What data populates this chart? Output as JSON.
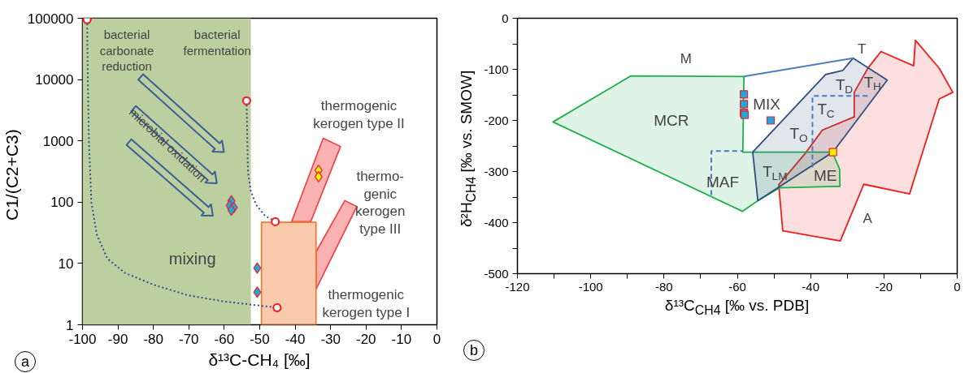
{
  "chart_data": [
    {
      "type": "scatter",
      "xlabel": "δ¹³C-CH₄ [‰]",
      "ylabel": "C1/(C2+C3)",
      "log": "y",
      "grid": false,
      "xlim": [
        -100,
        0
      ],
      "ylim": [
        1,
        100000
      ],
      "xticks": [
        -100,
        -90,
        -80,
        -70,
        -60,
        -50,
        -40,
        -30,
        -20,
        -10,
        0
      ],
      "yticks": [
        1,
        10,
        100,
        1000,
        10000,
        100000
      ],
      "bands": [
        {
          "axis": "x",
          "from": -100,
          "to": -52.5,
          "color": "#bccf9f"
        }
      ],
      "series": [
        {
          "type": "area",
          "color": "#f03c3c",
          "x": [
            -32.1,
            -27.2,
            -35.6,
            -41.0
          ],
          "values": [
            1100,
            810,
            48,
            48
          ]
        },
        {
          "type": "area",
          "color": "#f03c3c",
          "x": [
            -26.0,
            -22.6,
            -34.1,
            -34.1
          ],
          "values": [
            106,
            85,
            3.8,
            15.5
          ]
        },
        {
          "type": "area",
          "color": "#f07830",
          "x": [
            -49.5,
            -34.1,
            -34.1,
            -49.5
          ],
          "values": [
            1,
            1,
            47,
            47
          ]
        },
        {
          "type": "line",
          "color": "#2f4f8f",
          "line_style": "dotted",
          "x": [
            -98.7,
            -98.5,
            -98.2,
            -97.5,
            -96,
            -93,
            -88,
            -80,
            -70,
            -60,
            -45.1
          ],
          "values": [
            95000,
            10000,
            1000,
            100,
            30,
            12,
            7,
            4.5,
            3,
            2.4,
            1.9
          ]
        },
        {
          "type": "line",
          "color": "#2f4f8f",
          "line_style": "dotted",
          "x": [
            -53.7,
            -53.5,
            -53.3,
            -52.5,
            -51,
            -48.5,
            -45.6
          ],
          "values": [
            4500,
            1000,
            300,
            150,
            90,
            60,
            48
          ]
        },
        {
          "marker": "circle",
          "color": "#e8262a",
          "x": [
            -98.7,
            -53.7,
            -45.6,
            -45.1
          ],
          "values": [
            95000,
            4500,
            48,
            1.9
          ]
        },
        {
          "marker": "diamond",
          "color": "#1fa7e0",
          "x": [
            -58,
            -58.5,
            -57.3,
            -58,
            -50.7,
            -50.7
          ],
          "values": [
            105,
            88,
            82,
            74,
            8.4,
            3.4
          ]
        },
        {
          "marker": "diamond",
          "color": "#ffee00",
          "x": [
            -33.4,
            -33.4
          ],
          "values": [
            330,
            260
          ]
        }
      ],
      "annotations": [
        "bacterial\ncarbonate\nreduction",
        "bacterial\nfermentation",
        "microbial oxidation",
        "mixing",
        "thermogenic\nkerogen type II",
        "thermo-\ngenic\nkerogen\ntype III",
        "thermogenic\nkerogen type I",
        "a"
      ]
    },
    {
      "type": "scatter",
      "xlabel": "δ¹³C$_{CH4}$ [‰ vs. PDB]",
      "ylabel": "δ²H$_{CH4}$ [‰ vs. SMOW]",
      "grid": false,
      "xlim": [
        -120,
        0
      ],
      "ylim": [
        -500,
        0
      ],
      "xticks": [
        -120,
        {
          "value": -110,
          "label": null
        },
        -100,
        {
          "value": -90,
          "label": null
        },
        -80,
        {
          "value": -70,
          "label": null
        },
        -60,
        {
          "value": -50,
          "label": null
        },
        -40,
        {
          "value": -30,
          "label": null
        },
        -20,
        {
          "value": -10,
          "label": null
        },
        0
      ],
      "yticks": [
        -500,
        {
          "value": -450,
          "label": null
        },
        -400,
        {
          "value": -350,
          "label": null
        },
        -300,
        {
          "value": -250,
          "label": null
        },
        -200,
        {
          "value": -150,
          "label": null
        },
        -100,
        {
          "value": -50,
          "label": null
        },
        0
      ],
      "series": [
        {
          "type": "area",
          "color": "#ee1c1c",
          "x": [
            -48.7,
            -41.4,
            -36.8,
            -28.1,
            -28.1,
            -24.3,
            -20.8,
            -11.9,
            -11.4,
            -4.9,
            -1.2,
            -4.9,
            -13.0,
            -25.5,
            -31.9,
            -47.6
          ],
          "values": [
            -326,
            -264,
            -219,
            -193,
            -145,
            -97,
            -65,
            -93,
            -43,
            -98,
            -145,
            -158,
            -344,
            -325,
            -436,
            -416
          ]
        },
        {
          "type": "area",
          "color": "#1db04b",
          "x": [
            -110.3,
            -89.1,
            -58.2,
            -58.5,
            -34.1,
            -32.1,
            -32.0,
            -48.5,
            -54.4,
            -58.6
          ],
          "values": [
            -203,
            -113,
            -114,
            -262,
            -262,
            -295,
            -329,
            -332,
            -357,
            -378
          ]
        },
        {
          "type": "area",
          "color": "#2e4f7f",
          "x": [
            -55.8,
            -35.9,
            -31.2,
            -28.4,
            -19.1,
            -33.9,
            -54.4
          ],
          "values": [
            -262,
            -110,
            -102,
            -78,
            -121,
            -262,
            -357
          ]
        },
        {
          "type": "line",
          "color": "#4a7cc0",
          "x": [
            -58.2,
            -28.4
          ],
          "values": [
            -114,
            -78
          ]
        },
        {
          "type": "line",
          "color": "#4a7cc0",
          "line_style": "dashed",
          "x": [
            -67.1,
            -67.1,
            -58.5
          ],
          "values": [
            -346,
            -260,
            -260
          ]
        },
        {
          "type": "line",
          "color": "#4a7cc0",
          "line_style": "dashed",
          "x": [
            -39.5,
            -39.5,
            -24.3
          ],
          "values": [
            -292,
            -152,
            -152
          ]
        },
        {
          "marker": "square",
          "color": "#1fa7e0",
          "x": [
            -58.2,
            -58.2,
            -58.2,
            -58.0,
            -50.9
          ],
          "values": [
            -149,
            -168,
            -185,
            -189,
            -200
          ]
        },
        {
          "marker": "square",
          "color": "#ffee00",
          "x": [
            -33.9
          ],
          "values": [
            -262
          ]
        }
      ],
      "annotations": [
        "M",
        "T",
        "A",
        "MCR",
        "MIX",
        "MAF",
        "ME",
        "T$_{O}$",
        "T$_{LM}$",
        "T$_{C}$",
        "T$_{D}$",
        "T$_{H}$",
        "b"
      ]
    }
  ]
}
